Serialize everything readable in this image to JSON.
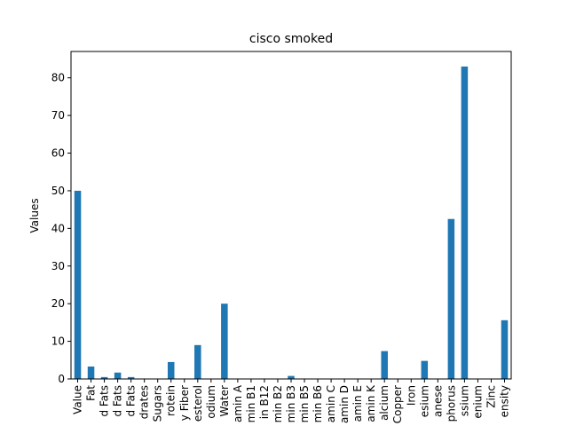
{
  "chart_data": {
    "type": "bar",
    "title": "cisco smoked",
    "xlabel": "",
    "ylabel": "Values",
    "ylim": [
      0,
      87
    ],
    "yticks": [
      0,
      10,
      20,
      30,
      40,
      50,
      60,
      70,
      80
    ],
    "grid": false,
    "legend": "none",
    "bar_color": "#1f77b4",
    "categories": [
      "Value",
      "Fat",
      "d Fats",
      "d Fats",
      "d Fats",
      "drates",
      "Sugars",
      "rotein",
      "y Fiber",
      "esterol",
      "odium",
      "Water",
      "amin A",
      "min B1",
      "in B12",
      "min B2",
      "min B3",
      "min B5",
      "min B6",
      "amin C",
      "amin D",
      "amin E",
      "amin K",
      "alcium",
      "Copper",
      "Iron",
      "esium",
      "anese",
      "phorus",
      "ssium",
      "enium",
      "Zinc",
      "ensity"
    ],
    "values": [
      50,
      3.3,
      0.5,
      1.7,
      0.5,
      0,
      0,
      4.5,
      0,
      9,
      0,
      20,
      0,
      0,
      0,
      0,
      0.8,
      0,
      0,
      0,
      0,
      0,
      0,
      7.4,
      0,
      0,
      4.8,
      0,
      42.5,
      83,
      0,
      0,
      15.6
    ]
  }
}
